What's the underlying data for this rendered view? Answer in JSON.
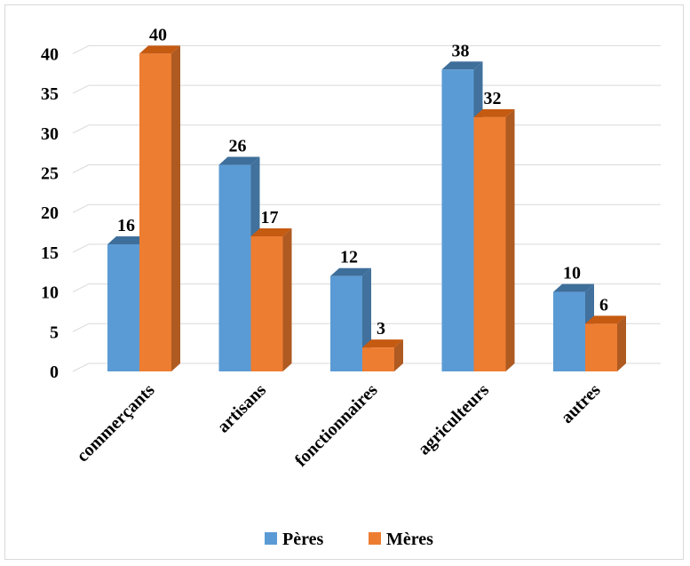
{
  "chart_data": {
    "type": "bar",
    "style": "3d-clustered-column",
    "categories": [
      "commerçants",
      "artisans",
      "fonctionnaires",
      "agriculteurs",
      "autres"
    ],
    "series": [
      {
        "name": "Pères",
        "color": "#5b9bd5",
        "side_color": "#41719c",
        "top_color": "#3e6f9b",
        "values": [
          16,
          26,
          12,
          38,
          10
        ]
      },
      {
        "name": "Mères",
        "color": "#ed7d31",
        "side_color": "#ae5a21",
        "top_color": "#c55a11",
        "values": [
          40,
          17,
          3,
          32,
          6
        ]
      }
    ],
    "y_ticks": [
      "0",
      "5",
      "10",
      "15",
      "20",
      "25",
      "30",
      "35",
      "40"
    ],
    "ylim": [
      0,
      40
    ],
    "grid": true,
    "legend_position": "bottom",
    "title": "",
    "xlabel": "",
    "ylabel": ""
  }
}
